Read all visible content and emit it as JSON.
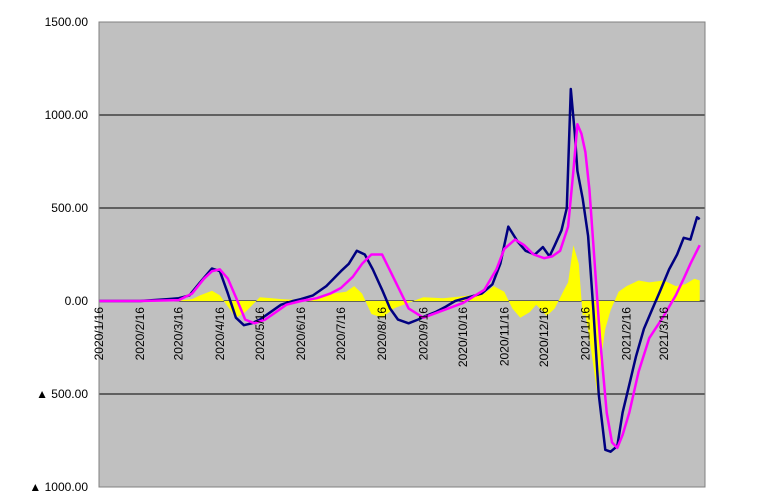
{
  "chart_data": {
    "type": "line",
    "title": "",
    "xlabel": "",
    "ylabel": "",
    "ylim": [
      -1000,
      1500
    ],
    "yticks": [
      {
        "value": 1500,
        "label": "1500.00"
      },
      {
        "value": 1000,
        "label": "1000.00"
      },
      {
        "value": 500,
        "label": "500.00"
      },
      {
        "value": 0,
        "label": "0.00"
      },
      {
        "value": -500,
        "label": "▲ 500.00"
      },
      {
        "value": -1000,
        "label": "▲ 1000.00"
      }
    ],
    "xlim": [
      "2020/1/16",
      "2021/4/16"
    ],
    "xticks": [
      "2020/1/16",
      "2020/2/16",
      "2020/3/16",
      "2020/4/16",
      "2020/5/16",
      "2020/6/16",
      "2020/7/16",
      "2020/8/16",
      "2020/9/16",
      "2020/10/16",
      "2020/11/16",
      "2020/12/16",
      "2021/1/16",
      "2021/2/16",
      "2021/3/16"
    ],
    "grid": true,
    "plot_background": "#c0c0c0",
    "series": [
      {
        "kind": "area",
        "color": "#ffff00",
        "x": [
          "2020/2/1",
          "2020/3/1",
          "2020/3/16",
          "2020/3/26",
          "2020/4/1",
          "2020/4/10",
          "2020/4/16",
          "2020/4/22",
          "2020/4/28",
          "2020/5/5",
          "2020/5/16",
          "2020/5/25",
          "2020/6/1",
          "2020/6/16",
          "2020/7/1",
          "2020/7/10",
          "2020/7/20",
          "2020/7/26",
          "2020/8/1",
          "2020/8/8",
          "2020/8/16",
          "2020/8/25",
          "2020/9/1",
          "2020/9/16",
          "2020/10/1",
          "2020/10/16",
          "2020/11/1",
          "2020/11/8",
          "2020/11/16",
          "2020/11/22",
          "2020/11/28",
          "2020/12/5",
          "2020/12/10",
          "2020/12/18",
          "2020/12/24",
          "2020/12/31",
          "2021/1/3",
          "2021/1/7",
          "2021/1/11",
          "2021/1/14",
          "2021/1/16",
          "2021/1/19",
          "2021/1/22",
          "2021/1/25",
          "2021/1/28",
          "2021/1/31",
          "2021/2/4",
          "2021/2/10",
          "2021/2/16",
          "2021/2/25",
          "2021/3/5",
          "2021/3/16",
          "2021/3/25",
          "2021/4/1",
          "2021/4/8",
          "2021/4/12"
        ],
        "values": [
          0,
          0,
          2,
          10,
          30,
          55,
          30,
          -30,
          -90,
          -60,
          20,
          15,
          10,
          5,
          20,
          40,
          50,
          80,
          40,
          -70,
          -90,
          -40,
          -20,
          20,
          15,
          25,
          40,
          80,
          50,
          -40,
          -90,
          -60,
          -20,
          -80,
          -40,
          60,
          100,
          300,
          200,
          -80,
          -70,
          -200,
          -350,
          -500,
          -300,
          -150,
          -50,
          50,
          80,
          110,
          100,
          110,
          80,
          90,
          120,
          110
        ]
      },
      {
        "kind": "line",
        "color": "#000080",
        "x": [
          "2020/1/16",
          "2020/2/16",
          "2020/3/8",
          "2020/3/16",
          "2020/3/24",
          "2020/4/1",
          "2020/4/10",
          "2020/4/16",
          "2020/4/22",
          "2020/4/28",
          "2020/5/4",
          "2020/5/10",
          "2020/5/16",
          "2020/5/24",
          "2020/6/1",
          "2020/6/10",
          "2020/6/16",
          "2020/6/25",
          "2020/7/5",
          "2020/7/16",
          "2020/7/22",
          "2020/7/28",
          "2020/8/3",
          "2020/8/9",
          "2020/8/16",
          "2020/8/22",
          "2020/8/28",
          "2020/9/5",
          "2020/9/12",
          "2020/9/18",
          "2020/9/25",
          "2020/10/3",
          "2020/10/10",
          "2020/10/20",
          "2020/10/30",
          "2020/11/7",
          "2020/11/13",
          "2020/11/19",
          "2020/11/26",
          "2020/12/2",
          "2020/12/9",
          "2020/12/15",
          "2020/12/20",
          "2020/12/24",
          "2020/12/29",
          "2021/1/2",
          "2021/1/5",
          "2021/1/8",
          "2021/1/10",
          "2021/1/14",
          "2021/1/18",
          "2021/1/22",
          "2021/1/26",
          "2021/1/31",
          "2021/2/4",
          "2021/2/9",
          "2021/2/13",
          "2021/2/18",
          "2021/2/23",
          "2021/3/1",
          "2021/3/7",
          "2021/3/13",
          "2021/3/20",
          "2021/3/26",
          "2021/3/31",
          "2021/4/5",
          "2021/4/10",
          "2021/4/12"
        ],
        "values": [
          0,
          0,
          10,
          15,
          30,
          100,
          175,
          160,
          40,
          -90,
          -130,
          -120,
          -100,
          -60,
          -20,
          0,
          10,
          30,
          80,
          160,
          200,
          270,
          250,
          170,
          60,
          -40,
          -100,
          -120,
          -100,
          -80,
          -60,
          -30,
          0,
          20,
          40,
          90,
          200,
          400,
          320,
          270,
          250,
          290,
          240,
          300,
          380,
          500,
          1140,
          900,
          700,
          550,
          350,
          -50,
          -500,
          -800,
          -810,
          -780,
          -600,
          -450,
          -300,
          -150,
          -50,
          50,
          170,
          250,
          340,
          330,
          450,
          440
        ]
      },
      {
        "kind": "line",
        "color": "#ff00ff",
        "x": [
          "2020/1/16",
          "2020/2/16",
          "2020/3/16",
          "2020/3/26",
          "2020/4/4",
          "2020/4/10",
          "2020/4/16",
          "2020/4/22",
          "2020/4/28",
          "2020/5/5",
          "2020/5/12",
          "2020/5/20",
          "2020/5/28",
          "2020/6/5",
          "2020/6/16",
          "2020/6/28",
          "2020/7/8",
          "2020/7/16",
          "2020/7/25",
          "2020/8/1",
          "2020/8/8",
          "2020/8/16",
          "2020/8/25",
          "2020/9/5",
          "2020/9/16",
          "2020/10/1",
          "2020/10/16",
          "2020/11/1",
          "2020/11/10",
          "2020/11/16",
          "2020/11/24",
          "2020/12/1",
          "2020/12/8",
          "2020/12/16",
          "2020/12/22",
          "2020/12/28",
          "2021/1/3",
          "2021/1/7",
          "2021/1/10",
          "2021/1/13",
          "2021/1/16",
          "2021/1/19",
          "2021/1/22",
          "2021/1/27",
          "2021/2/1",
          "2021/2/5",
          "2021/2/9",
          "2021/2/13",
          "2021/2/18",
          "2021/2/25",
          "2021/3/5",
          "2021/3/16",
          "2021/3/25",
          "2021/3/31",
          "2021/4/5",
          "2021/4/12"
        ],
        "values": [
          0,
          0,
          5,
          40,
          120,
          160,
          170,
          120,
          20,
          -100,
          -120,
          -100,
          -60,
          -20,
          0,
          15,
          40,
          70,
          130,
          200,
          250,
          250,
          120,
          -40,
          -90,
          -50,
          -10,
          60,
          170,
          280,
          330,
          300,
          250,
          230,
          240,
          270,
          400,
          700,
          950,
          900,
          800,
          600,
          300,
          -200,
          -600,
          -760,
          -790,
          -720,
          -600,
          -380,
          -200,
          -80,
          30,
          120,
          200,
          300
        ]
      }
    ]
  }
}
